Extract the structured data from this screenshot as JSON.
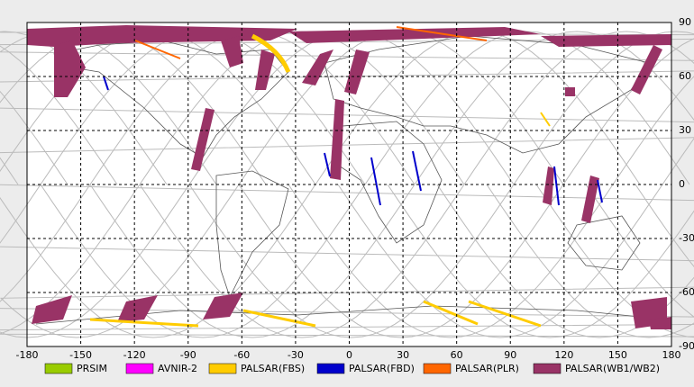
{
  "map": {
    "xlim": [
      -180,
      180
    ],
    "ylim": [
      -90,
      90
    ],
    "xticks": [
      -180,
      -150,
      -120,
      -90,
      -60,
      -30,
      0,
      30,
      60,
      90,
      120,
      150,
      180
    ],
    "yticks": [
      90,
      60,
      30,
      0,
      -30,
      -60,
      -90
    ],
    "legend": [
      {
        "name": "PRSIM",
        "color": "#99cc00"
      },
      {
        "name": "AVNIR-2",
        "color": "#ff00ff"
      },
      {
        "name": "PALSAR(FBS)",
        "color": "#ffcc00"
      },
      {
        "name": "PALSAR(FBD)",
        "color": "#0000cc"
      },
      {
        "name": "PALSAR(PLR)",
        "color": "#ff6600"
      },
      {
        "name": "PALSAR(WB1/WB2)",
        "color": "#993366"
      }
    ]
  }
}
